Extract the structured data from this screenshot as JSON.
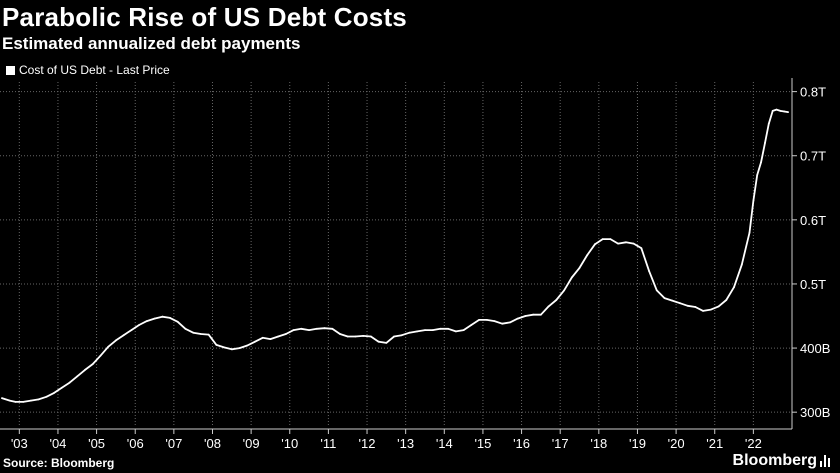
{
  "header": {
    "title": "Parabolic Rise of US Debt Costs",
    "subtitle": "Estimated annualized debt payments"
  },
  "legend": {
    "series_label": "Cost of US Debt - Last Price"
  },
  "footer": {
    "source": "Source: Bloomberg",
    "brand": "Bloomberg"
  },
  "colors": {
    "background": "#000000",
    "line": "#ffffff",
    "grid": "#666666"
  },
  "chart_data": {
    "type": "line",
    "title": "Parabolic Rise of US Debt Costs",
    "subtitle": "Estimated annualized debt payments",
    "xlabel": "",
    "ylabel": "",
    "xlim": [
      2002.5,
      2023.0
    ],
    "ylim": [
      280,
      815
    ],
    "y_axis_side": "right",
    "grid": true,
    "legend_position": "top-left",
    "x_ticks": [
      {
        "value": 2003,
        "label": "'03"
      },
      {
        "value": 2004,
        "label": "'04"
      },
      {
        "value": 2005,
        "label": "'05"
      },
      {
        "value": 2006,
        "label": "'06"
      },
      {
        "value": 2007,
        "label": "'07"
      },
      {
        "value": 2008,
        "label": "'08"
      },
      {
        "value": 2009,
        "label": "'09"
      },
      {
        "value": 2010,
        "label": "'10"
      },
      {
        "value": 2011,
        "label": "'11"
      },
      {
        "value": 2012,
        "label": "'12"
      },
      {
        "value": 2013,
        "label": "'13"
      },
      {
        "value": 2014,
        "label": "'14"
      },
      {
        "value": 2015,
        "label": "'15"
      },
      {
        "value": 2016,
        "label": "'16"
      },
      {
        "value": 2017,
        "label": "'17"
      },
      {
        "value": 2018,
        "label": "'18"
      },
      {
        "value": 2019,
        "label": "'19"
      },
      {
        "value": 2020,
        "label": "'20"
      },
      {
        "value": 2021,
        "label": "'21"
      },
      {
        "value": 2022,
        "label": "'22"
      }
    ],
    "y_ticks": [
      {
        "value": 300,
        "label": "300B"
      },
      {
        "value": 400,
        "label": "400B"
      },
      {
        "value": 500,
        "label": "0.5T"
      },
      {
        "value": 600,
        "label": "0.6T"
      },
      {
        "value": 700,
        "label": "0.7T"
      },
      {
        "value": 800,
        "label": "0.8T"
      }
    ],
    "series": [
      {
        "name": "Cost of US Debt - Last Price",
        "x": [
          2002.55,
          2002.75,
          2002.9,
          2003.1,
          2003.3,
          2003.5,
          2003.7,
          2003.9,
          2004.1,
          2004.3,
          2004.5,
          2004.7,
          2004.9,
          2005.1,
          2005.3,
          2005.5,
          2005.7,
          2005.9,
          2006.1,
          2006.3,
          2006.5,
          2006.7,
          2006.9,
          2007.1,
          2007.3,
          2007.5,
          2007.7,
          2007.9,
          2008.1,
          2008.3,
          2008.5,
          2008.7,
          2008.9,
          2009.1,
          2009.3,
          2009.5,
          2009.7,
          2009.9,
          2010.1,
          2010.3,
          2010.5,
          2010.7,
          2010.9,
          2011.1,
          2011.3,
          2011.5,
          2011.7,
          2011.9,
          2012.1,
          2012.3,
          2012.5,
          2012.7,
          2012.9,
          2013.1,
          2013.3,
          2013.5,
          2013.7,
          2013.9,
          2014.1,
          2014.3,
          2014.5,
          2014.7,
          2014.9,
          2015.1,
          2015.3,
          2015.5,
          2015.7,
          2015.9,
          2016.1,
          2016.3,
          2016.5,
          2016.7,
          2016.9,
          2017.1,
          2017.3,
          2017.5,
          2017.7,
          2017.9,
          2018.1,
          2018.3,
          2018.5,
          2018.7,
          2018.9,
          2019.1,
          2019.3,
          2019.5,
          2019.7,
          2019.9,
          2020.1,
          2020.3,
          2020.5,
          2020.7,
          2020.9,
          2021.1,
          2021.3,
          2021.5,
          2021.7,
          2021.9,
          2022.0,
          2022.1,
          2022.2,
          2022.3,
          2022.4,
          2022.5,
          2022.6,
          2022.7,
          2022.8,
          2022.9
        ],
        "values": [
          322,
          318,
          316,
          316,
          318,
          320,
          324,
          330,
          338,
          346,
          356,
          366,
          375,
          388,
          402,
          412,
          420,
          428,
          436,
          442,
          446,
          449,
          447,
          441,
          430,
          424,
          422,
          421,
          405,
          401,
          398,
          400,
          404,
          410,
          416,
          414,
          418,
          422,
          428,
          430,
          428,
          430,
          431,
          430,
          422,
          418,
          418,
          419,
          418,
          410,
          408,
          418,
          420,
          424,
          426,
          428,
          428,
          430,
          430,
          426,
          428,
          436,
          444,
          444,
          442,
          438,
          440,
          446,
          450,
          452,
          452,
          465,
          475,
          490,
          510,
          525,
          545,
          562,
          570,
          570,
          563,
          565,
          563,
          556,
          520,
          490,
          478,
          474,
          470,
          466,
          464,
          458,
          460,
          465,
          475,
          495,
          530,
          580,
          630,
          670,
          690,
          720,
          750,
          770,
          772,
          770,
          769,
          768
        ]
      }
    ]
  }
}
